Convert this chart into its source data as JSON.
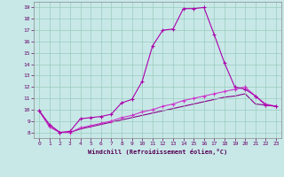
{
  "background_color": "#c8e8e8",
  "grid_color": "#99ccbb",
  "line_color1": "#aa00aa",
  "line_color2": "#cc33cc",
  "line_color3": "#880088",
  "xlim": [
    -0.5,
    23.5
  ],
  "ylim": [
    7.5,
    19.5
  ],
  "xticks": [
    0,
    1,
    2,
    3,
    4,
    5,
    6,
    7,
    8,
    9,
    10,
    11,
    12,
    13,
    14,
    15,
    16,
    17,
    18,
    19,
    20,
    21,
    22,
    23
  ],
  "yticks": [
    8,
    9,
    10,
    11,
    12,
    13,
    14,
    15,
    16,
    17,
    18,
    19
  ],
  "line1_x": [
    0,
    1,
    2,
    3,
    4,
    5,
    6,
    7,
    8,
    9,
    10,
    11,
    12,
    13,
    14,
    15,
    16,
    17,
    18,
    19,
    20,
    21,
    22,
    23
  ],
  "line1_y": [
    9.9,
    8.7,
    8.0,
    8.1,
    9.2,
    9.3,
    9.4,
    9.6,
    10.6,
    10.9,
    12.5,
    15.6,
    17.0,
    17.1,
    18.9,
    18.9,
    19.0,
    16.6,
    14.1,
    12.0,
    11.8,
    11.2,
    10.4,
    10.3
  ],
  "line2_x": [
    0,
    1,
    2,
    3,
    4,
    5,
    6,
    7,
    8,
    9,
    10,
    11,
    12,
    13,
    14,
    15,
    16,
    17,
    18,
    19,
    20,
    21,
    22,
    23
  ],
  "line2_y": [
    9.9,
    8.5,
    8.0,
    8.0,
    8.4,
    8.6,
    8.8,
    9.0,
    9.3,
    9.5,
    9.8,
    10.0,
    10.3,
    10.5,
    10.8,
    11.0,
    11.2,
    11.4,
    11.6,
    11.8,
    12.0,
    11.2,
    10.5,
    10.3
  ],
  "line3_x": [
    0,
    1,
    2,
    3,
    4,
    5,
    6,
    7,
    8,
    9,
    10,
    11,
    12,
    13,
    14,
    15,
    16,
    17,
    18,
    19,
    20,
    21,
    22,
    23
  ],
  "line3_y": [
    9.9,
    8.5,
    8.0,
    8.0,
    8.3,
    8.5,
    8.7,
    8.9,
    9.1,
    9.3,
    9.5,
    9.7,
    9.9,
    10.1,
    10.3,
    10.5,
    10.7,
    10.9,
    11.1,
    11.2,
    11.4,
    10.5,
    10.4,
    10.3
  ],
  "xlabel": "Windchill (Refroidissement éolien,°C)",
  "tick_color": "#660066",
  "xlabel_color": "#550055",
  "spine_color": "#888888"
}
